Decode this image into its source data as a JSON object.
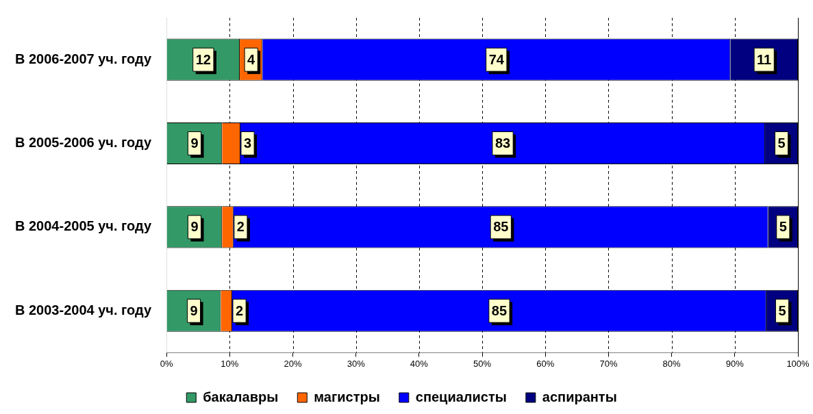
{
  "chart_data": {
    "type": "bar",
    "orientation": "horizontal",
    "stacked": true,
    "categories": [
      "В 2006-2007 уч. году",
      "В 2005-2006 уч. году",
      "В 2004-2005 уч. году",
      "В 2003-2004 уч. году"
    ],
    "series": [
      {
        "name": "бакалавры",
        "color": "#339966",
        "values": [
          11.6,
          8.8,
          8.8,
          8.6
        ],
        "value_labels": [
          "12",
          "9",
          "9",
          "9"
        ]
      },
      {
        "name": "магистры",
        "color": "#ff6600",
        "values": [
          3.6,
          2.9,
          1.8,
          1.8
        ],
        "value_labels": [
          "4",
          "3",
          "2",
          "2"
        ]
      },
      {
        "name": "специалисты",
        "color": "#0000ff",
        "values": [
          74.1,
          83.1,
          84.7,
          84.6
        ],
        "value_labels": [
          "74",
          "83",
          "85",
          "85"
        ]
      },
      {
        "name": "аспиранты",
        "color": "#000080",
        "values": [
          10.7,
          5.2,
          4.7,
          5.0
        ],
        "value_labels": [
          "11",
          "5",
          "5",
          "5"
        ]
      }
    ],
    "xlim": [
      0,
      100
    ],
    "xticks": [
      {
        "value": 0,
        "label": "0%"
      },
      {
        "value": 10,
        "label": "10%"
      },
      {
        "value": 20,
        "label": "20%"
      },
      {
        "value": 30,
        "label": "30%"
      },
      {
        "value": 40,
        "label": "40%"
      },
      {
        "value": 50,
        "label": "50%"
      },
      {
        "value": 60,
        "label": "60%"
      },
      {
        "value": 70,
        "label": "70%"
      },
      {
        "value": 80,
        "label": "80%"
      },
      {
        "value": 90,
        "label": "90%"
      },
      {
        "value": 100,
        "label": "100%"
      }
    ],
    "grid": "x",
    "line_style": "dashed",
    "legend": "bottom"
  }
}
